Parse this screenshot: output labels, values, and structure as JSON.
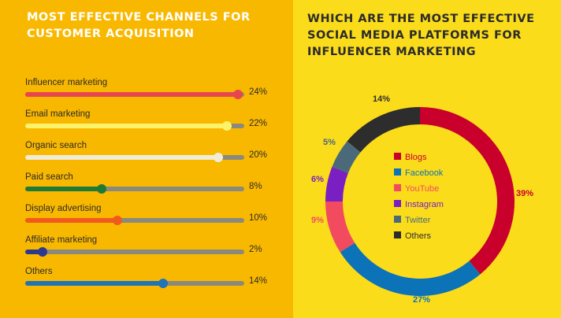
{
  "left_title": [
    "MOST EFFECTIVE CHANNELS FOR",
    "CUSTOMER ACQUISITION"
  ],
  "right_title": [
    "WHICH ARE THE MOST EFFECTIVE",
    "SOCIAL MEDIA PLATFORMS FOR",
    "INFLUENCER MARKETING"
  ],
  "chart_data": [
    {
      "type": "bar",
      "orientation": "horizontal",
      "categories": [
        "Influencer marketing",
        "Email marketing",
        "Organic search",
        "Paid search",
        "Display advertising",
        "Affiliate marketing",
        "Others"
      ],
      "values": [
        24,
        22,
        20,
        8,
        10,
        2,
        14
      ],
      "value_labels": [
        "24%",
        "22%",
        "20%",
        "8%",
        "10%",
        "2%",
        "14%"
      ],
      "fill_fraction": [
        0.97,
        0.92,
        0.88,
        0.35,
        0.42,
        0.08,
        0.63
      ],
      "colors": [
        "#e8464f",
        "#fdf36b",
        "#f1ecd6",
        "#1e7a34",
        "#f05a1e",
        "#2c3a8e",
        "#1f73b7"
      ],
      "track_color": "#8a8a7c"
    },
    {
      "type": "pie",
      "style": "donut",
      "categories": [
        "Blogs",
        "Facebook",
        "YouTube",
        "Instagram",
        "Twitter",
        "Others"
      ],
      "values": [
        39,
        27,
        9,
        6,
        5,
        14
      ],
      "value_labels": [
        "39%",
        "27%",
        "9%",
        "6%",
        "5%",
        "14%"
      ],
      "colors": [
        "#c8002b",
        "#0c73b8",
        "#f24b60",
        "#7a1fc1",
        "#4a6a7a",
        "#2d2d2d"
      ],
      "legend_text_colors": [
        "#c8002b",
        "#0c73b8",
        "#f24b60",
        "#7a1fc1",
        "#4a6a7a",
        "#2d2d2d"
      ],
      "legend_position": "center"
    }
  ]
}
